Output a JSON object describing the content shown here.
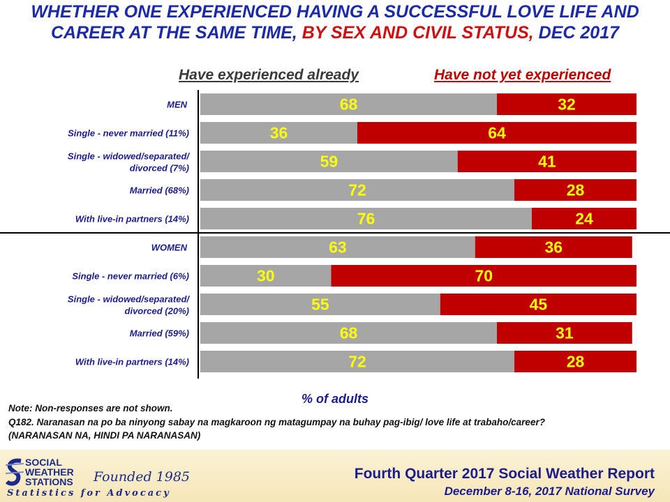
{
  "title": {
    "line1": "WHETHER ONE EXPERIENCED HAVING A SUCCESSFUL LOVE LIFE AND",
    "line2_a": "CAREER AT THE SAME TIME, ",
    "line2_b": "BY SEX AND CIVIL STATUS,",
    "line2_c": " DEC 2017"
  },
  "colors": {
    "experienced": "#a6a6a6",
    "not_yet": "#c00000",
    "value_text": "#ffff00",
    "row_label": "#1c1c8a"
  },
  "chart_data": {
    "type": "bar",
    "orientation": "horizontal",
    "stacked": true,
    "xlabel": "% of adults",
    "categories": [
      "MEN",
      "Single - never married (11%)",
      "Single - widowed/separated/ divorced (7%)",
      "Married (68%)",
      "With live-in partners (14%)",
      "WOMEN",
      "Single - never married (6%)",
      "Single - widowed/separated/ divorced (20%)",
      "Married (59%)",
      "With live-in partners (14%)"
    ],
    "series": [
      {
        "name": "Have experienced already",
        "values": [
          68,
          36,
          59,
          72,
          76,
          63,
          30,
          55,
          68,
          72
        ]
      },
      {
        "name": "Have not yet experienced",
        "values": [
          32,
          64,
          41,
          28,
          24,
          36,
          70,
          45,
          31,
          28
        ]
      }
    ],
    "xlim": [
      0,
      100
    ]
  },
  "notes": {
    "note1": "Note: Non-responses are not shown.",
    "note2": "Q182. Naranasan na po ba ninyong sabay na magkaroon ng matagumpay na buhay pag-ibig/  love life at trabaho/career?",
    "note3": "(NARANASAN NA, HINDI PA NARANASAN)"
  },
  "footer": {
    "logo_line1": "SOCIAL",
    "logo_line2": "WEATHER",
    "logo_line3": "STATIONS",
    "founded": "Founded 1985",
    "tagline": "Statistics for Advocacy",
    "report_title": "Fourth Quarter 2017 Social Weather Report",
    "report_subtitle": "December 8-16, 2017 National Survey"
  }
}
